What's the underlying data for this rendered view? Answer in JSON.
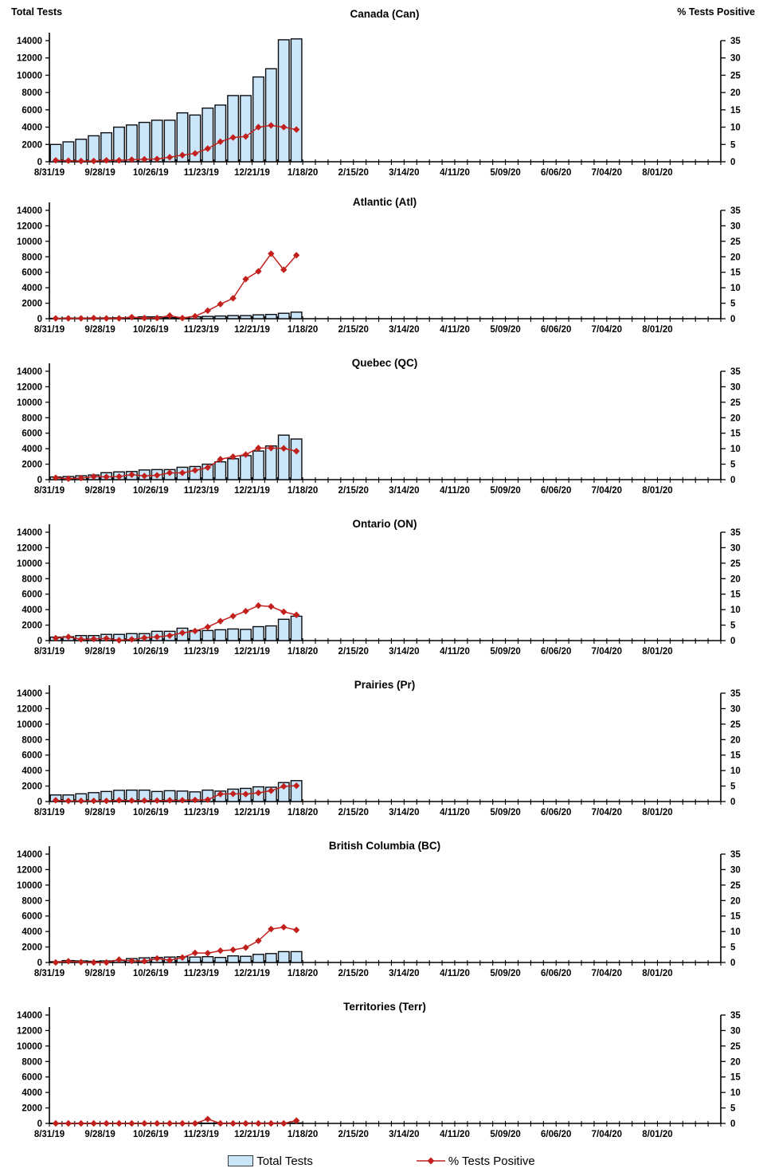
{
  "header": {
    "left_axis_title": "Total Tests",
    "right_axis_title": "% Tests Positive"
  },
  "legend": {
    "items": [
      {
        "label": "Total Tests",
        "type": "bar-swatch"
      },
      {
        "label": "% Tests Positive",
        "type": "line-diamond-swatch"
      }
    ]
  },
  "colors": {
    "bar_fill": "#CBE6F9",
    "bar_border": "#0B0C10",
    "line": "#C2201C",
    "axis": "#000000",
    "text": "#000000"
  },
  "axis": {
    "weeks_total": 53,
    "label_every": 4,
    "x_tick_labels": [
      "8/31/19",
      "9/28/19",
      "10/26/19",
      "11/23/19",
      "12/21/19",
      "1/18/20",
      "2/15/20",
      "3/14/20",
      "4/11/20",
      "5/09/20",
      "6/06/20",
      "7/04/20",
      "8/01/20"
    ],
    "left_ticks": [
      0,
      2000,
      4000,
      6000,
      8000,
      10000,
      12000,
      14000
    ],
    "right_ticks": [
      0,
      5,
      10,
      15,
      20,
      25,
      30,
      35
    ],
    "left_max": 14000,
    "right_max": 35
  },
  "chart_data": [
    {
      "type": "bar+line",
      "title": "Canada (Can)",
      "xlabel": "",
      "ylabel_left": "Total Tests",
      "ylabel_right": "% Tests Positive",
      "ylim_left": [
        0,
        14000
      ],
      "ylim_right": [
        0,
        35
      ],
      "categories": [
        "8/31/19",
        "9/7/19",
        "9/14/19",
        "9/21/19",
        "9/28/19",
        "10/5/19",
        "10/12/19",
        "10/19/19",
        "10/26/19",
        "11/2/19",
        "11/9/19",
        "11/16/19",
        "11/23/19",
        "11/30/19",
        "12/7/19",
        "12/14/19",
        "12/21/19",
        "12/28/19",
        "1/4/20",
        "1/11/20"
      ],
      "series": [
        {
          "name": "Total Tests",
          "axis": "left",
          "values": [
            2000,
            2300,
            2600,
            3000,
            3350,
            4000,
            4250,
            4550,
            4800,
            4800,
            5650,
            5400,
            6200,
            6550,
            7650,
            7650,
            9800,
            10750,
            14100,
            14200
          ]
        },
        {
          "name": "% Tests Positive",
          "axis": "right",
          "values": [
            0.4,
            0.3,
            0.2,
            0.2,
            0.4,
            0.4,
            0.6,
            0.7,
            0.8,
            1.3,
            1.9,
            2.4,
            3.8,
            5.8,
            7.0,
            7.3,
            10.0,
            10.5,
            10.0,
            9.3
          ]
        }
      ]
    },
    {
      "type": "bar+line",
      "title": "Atlantic (Atl)",
      "ylim_left": [
        0,
        14000
      ],
      "ylim_right": [
        0,
        35
      ],
      "categories": [
        "8/31/19",
        "9/7/19",
        "9/14/19",
        "9/21/19",
        "9/28/19",
        "10/5/19",
        "10/12/19",
        "10/19/19",
        "10/26/19",
        "11/2/19",
        "11/9/19",
        "11/16/19",
        "11/23/19",
        "11/30/19",
        "12/7/19",
        "12/14/19",
        "12/21/19",
        "12/28/19",
        "1/4/20",
        "1/11/20"
      ],
      "series": [
        {
          "name": "Total Tests",
          "axis": "left",
          "values": [
            50,
            80,
            80,
            100,
            100,
            120,
            150,
            250,
            250,
            150,
            150,
            250,
            300,
            350,
            400,
            400,
            500,
            550,
            700,
            850
          ]
        },
        {
          "name": "% Tests Positive",
          "axis": "right",
          "values": [
            0.1,
            0.1,
            0.1,
            0.2,
            0.1,
            0.1,
            0.5,
            0.2,
            0.2,
            1.0,
            0.2,
            0.8,
            2.6,
            4.7,
            6.6,
            12.8,
            15.3,
            21.0,
            15.8,
            20.5
          ]
        }
      ]
    },
    {
      "type": "bar+line",
      "title": "Quebec (QC)",
      "ylim_left": [
        0,
        14000
      ],
      "ylim_right": [
        0,
        35
      ],
      "categories": [
        "8/31/19",
        "9/7/19",
        "9/14/19",
        "9/21/19",
        "9/28/19",
        "10/5/19",
        "10/12/19",
        "10/19/19",
        "10/26/19",
        "11/2/19",
        "11/9/19",
        "11/16/19",
        "11/23/19",
        "11/30/19",
        "12/7/19",
        "12/14/19",
        "12/21/19",
        "12/28/19",
        "1/4/20",
        "1/11/20"
      ],
      "series": [
        {
          "name": "Total Tests",
          "axis": "left",
          "values": [
            350,
            400,
            500,
            600,
            900,
            1000,
            1050,
            1250,
            1300,
            1300,
            1600,
            1700,
            2000,
            2300,
            2700,
            3100,
            3700,
            4350,
            5750,
            5250
          ]
        },
        {
          "name": "% Tests Positive",
          "axis": "right",
          "values": [
            0.6,
            0.3,
            0.5,
            1.0,
            0.9,
            1.0,
            1.6,
            1.2,
            1.4,
            2.2,
            2.2,
            3.0,
            3.9,
            6.6,
            7.4,
            8.1,
            10.2,
            10.2,
            10.1,
            9.2
          ]
        }
      ]
    },
    {
      "type": "bar+line",
      "title": "Ontario (ON)",
      "ylim_left": [
        0,
        14000
      ],
      "ylim_right": [
        0,
        35
      ],
      "categories": [
        "8/31/19",
        "9/7/19",
        "9/14/19",
        "9/21/19",
        "9/28/19",
        "10/5/19",
        "10/12/19",
        "10/19/19",
        "10/26/19",
        "11/2/19",
        "11/9/19",
        "11/16/19",
        "11/23/19",
        "11/30/19",
        "12/7/19",
        "12/14/19",
        "12/21/19",
        "12/28/19",
        "1/4/20",
        "1/11/20"
      ],
      "series": [
        {
          "name": "Total Tests",
          "axis": "left",
          "values": [
            450,
            500,
            650,
            650,
            800,
            800,
            900,
            900,
            1200,
            1200,
            1600,
            1300,
            1300,
            1400,
            1500,
            1450,
            1800,
            1900,
            2750,
            3150
          ]
        },
        {
          "name": "% Tests Positive",
          "axis": "right",
          "values": [
            0.8,
            1.2,
            0.4,
            0.5,
            0.7,
            0.1,
            0.4,
            0.9,
            1.2,
            1.6,
            2.5,
            3.1,
            4.4,
            6.3,
            7.9,
            9.5,
            11.3,
            11.0,
            9.3,
            8.3
          ]
        }
      ]
    },
    {
      "type": "bar+line",
      "title": "Prairies (Pr)",
      "ylim_left": [
        0,
        14000
      ],
      "ylim_right": [
        0,
        35
      ],
      "categories": [
        "8/31/19",
        "9/7/19",
        "9/14/19",
        "9/21/19",
        "9/28/19",
        "10/5/19",
        "10/12/19",
        "10/19/19",
        "10/26/19",
        "11/2/19",
        "11/9/19",
        "11/16/19",
        "11/23/19",
        "11/30/19",
        "12/7/19",
        "12/14/19",
        "12/21/19",
        "12/28/19",
        "1/4/20",
        "1/11/20"
      ],
      "series": [
        {
          "name": "Total Tests",
          "axis": "left",
          "values": [
            850,
            850,
            1000,
            1150,
            1300,
            1450,
            1475,
            1475,
            1300,
            1400,
            1350,
            1250,
            1475,
            1350,
            1600,
            1700,
            1900,
            1850,
            2450,
            2700
          ]
        },
        {
          "name": "% Tests Positive",
          "axis": "right",
          "values": [
            0.4,
            0.2,
            0.2,
            0.2,
            0.2,
            0.4,
            0.3,
            0.3,
            0.3,
            0.4,
            0.4,
            0.5,
            0.6,
            2.4,
            2.5,
            2.4,
            2.8,
            3.5,
            4.9,
            5.1
          ]
        }
      ]
    },
    {
      "type": "bar+line",
      "title": "British Columbia (BC)",
      "ylim_left": [
        0,
        14000
      ],
      "ylim_right": [
        0,
        35
      ],
      "categories": [
        "8/31/19",
        "9/7/19",
        "9/14/19",
        "9/21/19",
        "9/28/19",
        "10/5/19",
        "10/12/19",
        "10/19/19",
        "10/26/19",
        "11/2/19",
        "11/9/19",
        "11/16/19",
        "11/23/19",
        "11/30/19",
        "12/7/19",
        "12/14/19",
        "12/21/19",
        "12/28/19",
        "1/4/20",
        "1/11/20"
      ],
      "series": [
        {
          "name": "Total Tests",
          "axis": "left",
          "values": [
            100,
            250,
            200,
            150,
            200,
            250,
            500,
            600,
            650,
            700,
            750,
            700,
            750,
            650,
            850,
            800,
            1050,
            1150,
            1400,
            1400
          ]
        },
        {
          "name": "% Tests Positive",
          "axis": "right",
          "values": [
            0.0,
            0.4,
            0.1,
            0.0,
            0.0,
            0.9,
            0.5,
            0.4,
            1.3,
            0.7,
            1.6,
            3.1,
            3.0,
            3.8,
            4.1,
            4.8,
            7.0,
            10.8,
            11.4,
            10.5
          ]
        }
      ]
    },
    {
      "type": "bar+line",
      "title": "Territories (Terr)",
      "ylim_left": [
        0,
        14000
      ],
      "ylim_right": [
        0,
        35
      ],
      "categories": [
        "8/31/19",
        "9/7/19",
        "9/14/19",
        "9/21/19",
        "9/28/19",
        "10/5/19",
        "10/12/19",
        "10/19/19",
        "10/26/19",
        "11/2/19",
        "11/9/19",
        "11/16/19",
        "11/23/19",
        "11/30/19",
        "12/7/19",
        "12/14/19",
        "12/21/19",
        "12/28/19",
        "1/4/20",
        "1/11/20"
      ],
      "series": [
        {
          "name": "Total Tests",
          "axis": "left",
          "values": [
            20,
            20,
            20,
            20,
            30,
            30,
            30,
            30,
            30,
            40,
            40,
            40,
            40,
            40,
            50,
            50,
            50,
            50,
            60,
            60
          ]
        },
        {
          "name": "% Tests Positive",
          "axis": "right",
          "values": [
            0,
            0,
            0,
            0,
            0,
            0,
            0,
            0,
            0,
            0,
            0,
            0,
            1.4,
            0,
            0,
            0,
            0,
            0,
            0,
            0.9
          ]
        }
      ]
    }
  ]
}
